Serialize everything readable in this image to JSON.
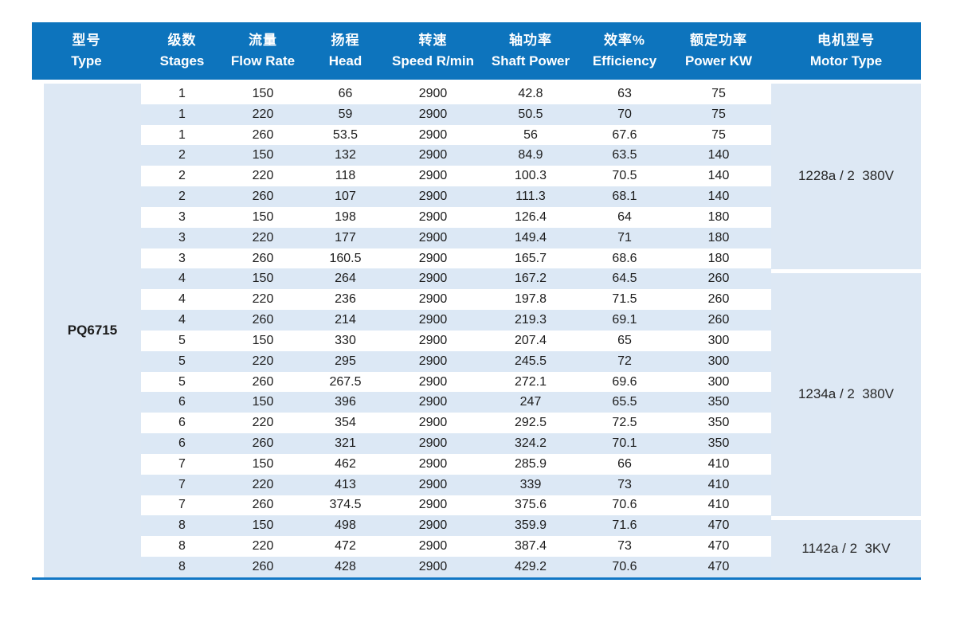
{
  "table": {
    "type_label": "PQ6715",
    "columns": [
      {
        "zh": "型号",
        "en": "Type"
      },
      {
        "zh": "级数",
        "en": "Stages"
      },
      {
        "zh": "流量",
        "en": "Flow Rate"
      },
      {
        "zh": "扬程",
        "en": "Head"
      },
      {
        "zh": "转速",
        "en": "Speed R/min"
      },
      {
        "zh": "轴功率",
        "en": "Shaft Power"
      },
      {
        "zh": "效率%",
        "en": "Efficiency"
      },
      {
        "zh": "额定功率",
        "en": "Power KW"
      },
      {
        "zh": "电机型号",
        "en": "Motor Type"
      }
    ],
    "rows": [
      [
        "1",
        "150",
        "66",
        "2900",
        "42.8",
        "63",
        "75"
      ],
      [
        "1",
        "220",
        "59",
        "2900",
        "50.5",
        "70",
        "75"
      ],
      [
        "1",
        "260",
        "53.5",
        "2900",
        "56",
        "67.6",
        "75"
      ],
      [
        "2",
        "150",
        "132",
        "2900",
        "84.9",
        "63.5",
        "140"
      ],
      [
        "2",
        "220",
        "118",
        "2900",
        "100.3",
        "70.5",
        "140"
      ],
      [
        "2",
        "260",
        "107",
        "2900",
        "111.3",
        "68.1",
        "140"
      ],
      [
        "3",
        "150",
        "198",
        "2900",
        "126.4",
        "64",
        "180"
      ],
      [
        "3",
        "220",
        "177",
        "2900",
        "149.4",
        "71",
        "180"
      ],
      [
        "3",
        "260",
        "160.5",
        "2900",
        "165.7",
        "68.6",
        "180"
      ],
      [
        "4",
        "150",
        "264",
        "2900",
        "167.2",
        "64.5",
        "260"
      ],
      [
        "4",
        "220",
        "236",
        "2900",
        "197.8",
        "71.5",
        "260"
      ],
      [
        "4",
        "260",
        "214",
        "2900",
        "219.3",
        "69.1",
        "260"
      ],
      [
        "5",
        "150",
        "330",
        "2900",
        "207.4",
        "65",
        "300"
      ],
      [
        "5",
        "220",
        "295",
        "2900",
        "245.5",
        "72",
        "300"
      ],
      [
        "5",
        "260",
        "267.5",
        "2900",
        "272.1",
        "69.6",
        "300"
      ],
      [
        "6",
        "150",
        "396",
        "2900",
        "247",
        "65.5",
        "350"
      ],
      [
        "6",
        "220",
        "354",
        "2900",
        "292.5",
        "72.5",
        "350"
      ],
      [
        "6",
        "260",
        "321",
        "2900",
        "324.2",
        "70.1",
        "350"
      ],
      [
        "7",
        "150",
        "462",
        "2900",
        "285.9",
        "66",
        "410"
      ],
      [
        "7",
        "220",
        "413",
        "2900",
        "339",
        "73",
        "410"
      ],
      [
        "7",
        "260",
        "374.5",
        "2900",
        "375.6",
        "70.6",
        "410"
      ],
      [
        "8",
        "150",
        "498",
        "2900",
        "359.9",
        "71.6",
        "470"
      ],
      [
        "8",
        "220",
        "472",
        "2900",
        "387.4",
        "73",
        "470"
      ],
      [
        "8",
        "260",
        "428",
        "2900",
        "429.2",
        "70.6",
        "470"
      ]
    ],
    "motor_groups": [
      {
        "label": "1228a / 2  380V",
        "rows": 9
      },
      {
        "label": "1234a / 2  380V",
        "rows": 12
      },
      {
        "label": "1142a / 2  3KV",
        "rows": 3
      }
    ],
    "colors": {
      "header_bg": "#0d74bd",
      "stripe": "#dce8f5",
      "side_block": "#dde8f4",
      "accent_line": "#1277c5"
    }
  }
}
